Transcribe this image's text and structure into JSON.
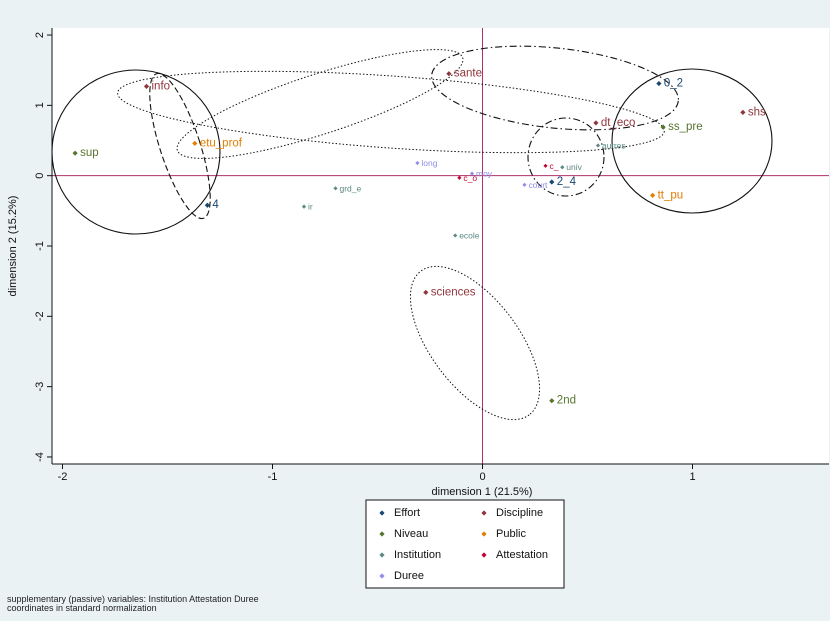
{
  "chart_data": {
    "type": "scatter",
    "title": "",
    "xlabel": "dimension 1 (21.5%)",
    "ylabel": "dimension 2 (15.2%)",
    "xlim": [
      -2.05,
      1.65
    ],
    "ylim": [
      -4.1,
      2.1
    ],
    "xticks": [
      -2,
      -1,
      0,
      1
    ],
    "yticks": [
      -4,
      -3,
      -2,
      -1,
      0,
      1,
      2
    ],
    "xtick_labels": [
      "-2",
      "-1",
      "0",
      "1"
    ],
    "ytick_labels": [
      "-4",
      "-3",
      "-2",
      "-1",
      "0",
      "1",
      "2"
    ],
    "grid": false,
    "legend_position": "bottom",
    "series": [
      {
        "name": "Effort",
        "color": "#1a476f",
        "points": [
          {
            "label": "4",
            "x": -1.31,
            "y": -0.42,
            "size": "large"
          },
          {
            "label": "0_2",
            "x": 0.84,
            "y": 1.31,
            "size": "large"
          },
          {
            "label": "2_4",
            "x": 0.33,
            "y": -0.09,
            "size": "large"
          }
        ]
      },
      {
        "name": "Niveau",
        "color": "#55752f",
        "points": [
          {
            "label": "sup",
            "x": -1.94,
            "y": 0.32,
            "size": "large"
          },
          {
            "label": "ss_pre",
            "x": 0.86,
            "y": 0.69,
            "size": "large"
          },
          {
            "label": "2nd",
            "x": 0.33,
            "y": -3.2,
            "size": "large"
          }
        ]
      },
      {
        "name": "Institution",
        "color": "#5a8a82",
        "points": [
          {
            "label": "grd_e",
            "x": -0.7,
            "y": -0.18,
            "size": "small"
          },
          {
            "label": "ir",
            "x": -0.85,
            "y": -0.44,
            "size": "small"
          },
          {
            "label": "ecole",
            "x": -0.13,
            "y": -0.85,
            "size": "small"
          },
          {
            "label": "univ",
            "x": 0.38,
            "y": 0.12,
            "size": "small"
          },
          {
            "label": "autres",
            "x": 0.55,
            "y": 0.43,
            "size": "small"
          }
        ]
      },
      {
        "name": "Duree",
        "color": "#8e8ee6",
        "points": [
          {
            "label": "long",
            "x": -0.31,
            "y": 0.18,
            "size": "small"
          },
          {
            "label": "moy",
            "x": -0.05,
            "y": 0.03,
            "size": "small"
          },
          {
            "label": "court",
            "x": 0.2,
            "y": -0.13,
            "size": "small"
          }
        ]
      },
      {
        "name": "Discipline",
        "color": "#90353b",
        "points": [
          {
            "label": "info",
            "x": -1.6,
            "y": 1.27,
            "size": "large"
          },
          {
            "label": "sante",
            "x": -0.16,
            "y": 1.45,
            "size": "large"
          },
          {
            "label": "dt_eco",
            "x": 0.54,
            "y": 0.75,
            "size": "large"
          },
          {
            "label": "shs",
            "x": 1.24,
            "y": 0.9,
            "size": "large"
          },
          {
            "label": "sciences",
            "x": -0.27,
            "y": -1.66,
            "size": "large"
          }
        ]
      },
      {
        "name": "Public",
        "color": "#e37e00",
        "points": [
          {
            "label": "etu_prof",
            "x": -1.37,
            "y": 0.46,
            "size": "large"
          },
          {
            "label": "tt_pu",
            "x": 0.81,
            "y": -0.28,
            "size": "large"
          }
        ]
      },
      {
        "name": "Attestation",
        "color": "#c10534",
        "points": [
          {
            "label": "c_o",
            "x": -0.11,
            "y": -0.03,
            "size": "small"
          },
          {
            "label": "c_",
            "x": 0.3,
            "y": 0.14,
            "size": "small"
          }
        ]
      }
    ],
    "reference_lines": {
      "x": 0,
      "y": 0,
      "color": "#b0306a"
    }
  },
  "notes": [
    "supplementary (passive) variables: Institution Attestation Duree",
    "coordinates in standard normalization"
  ]
}
